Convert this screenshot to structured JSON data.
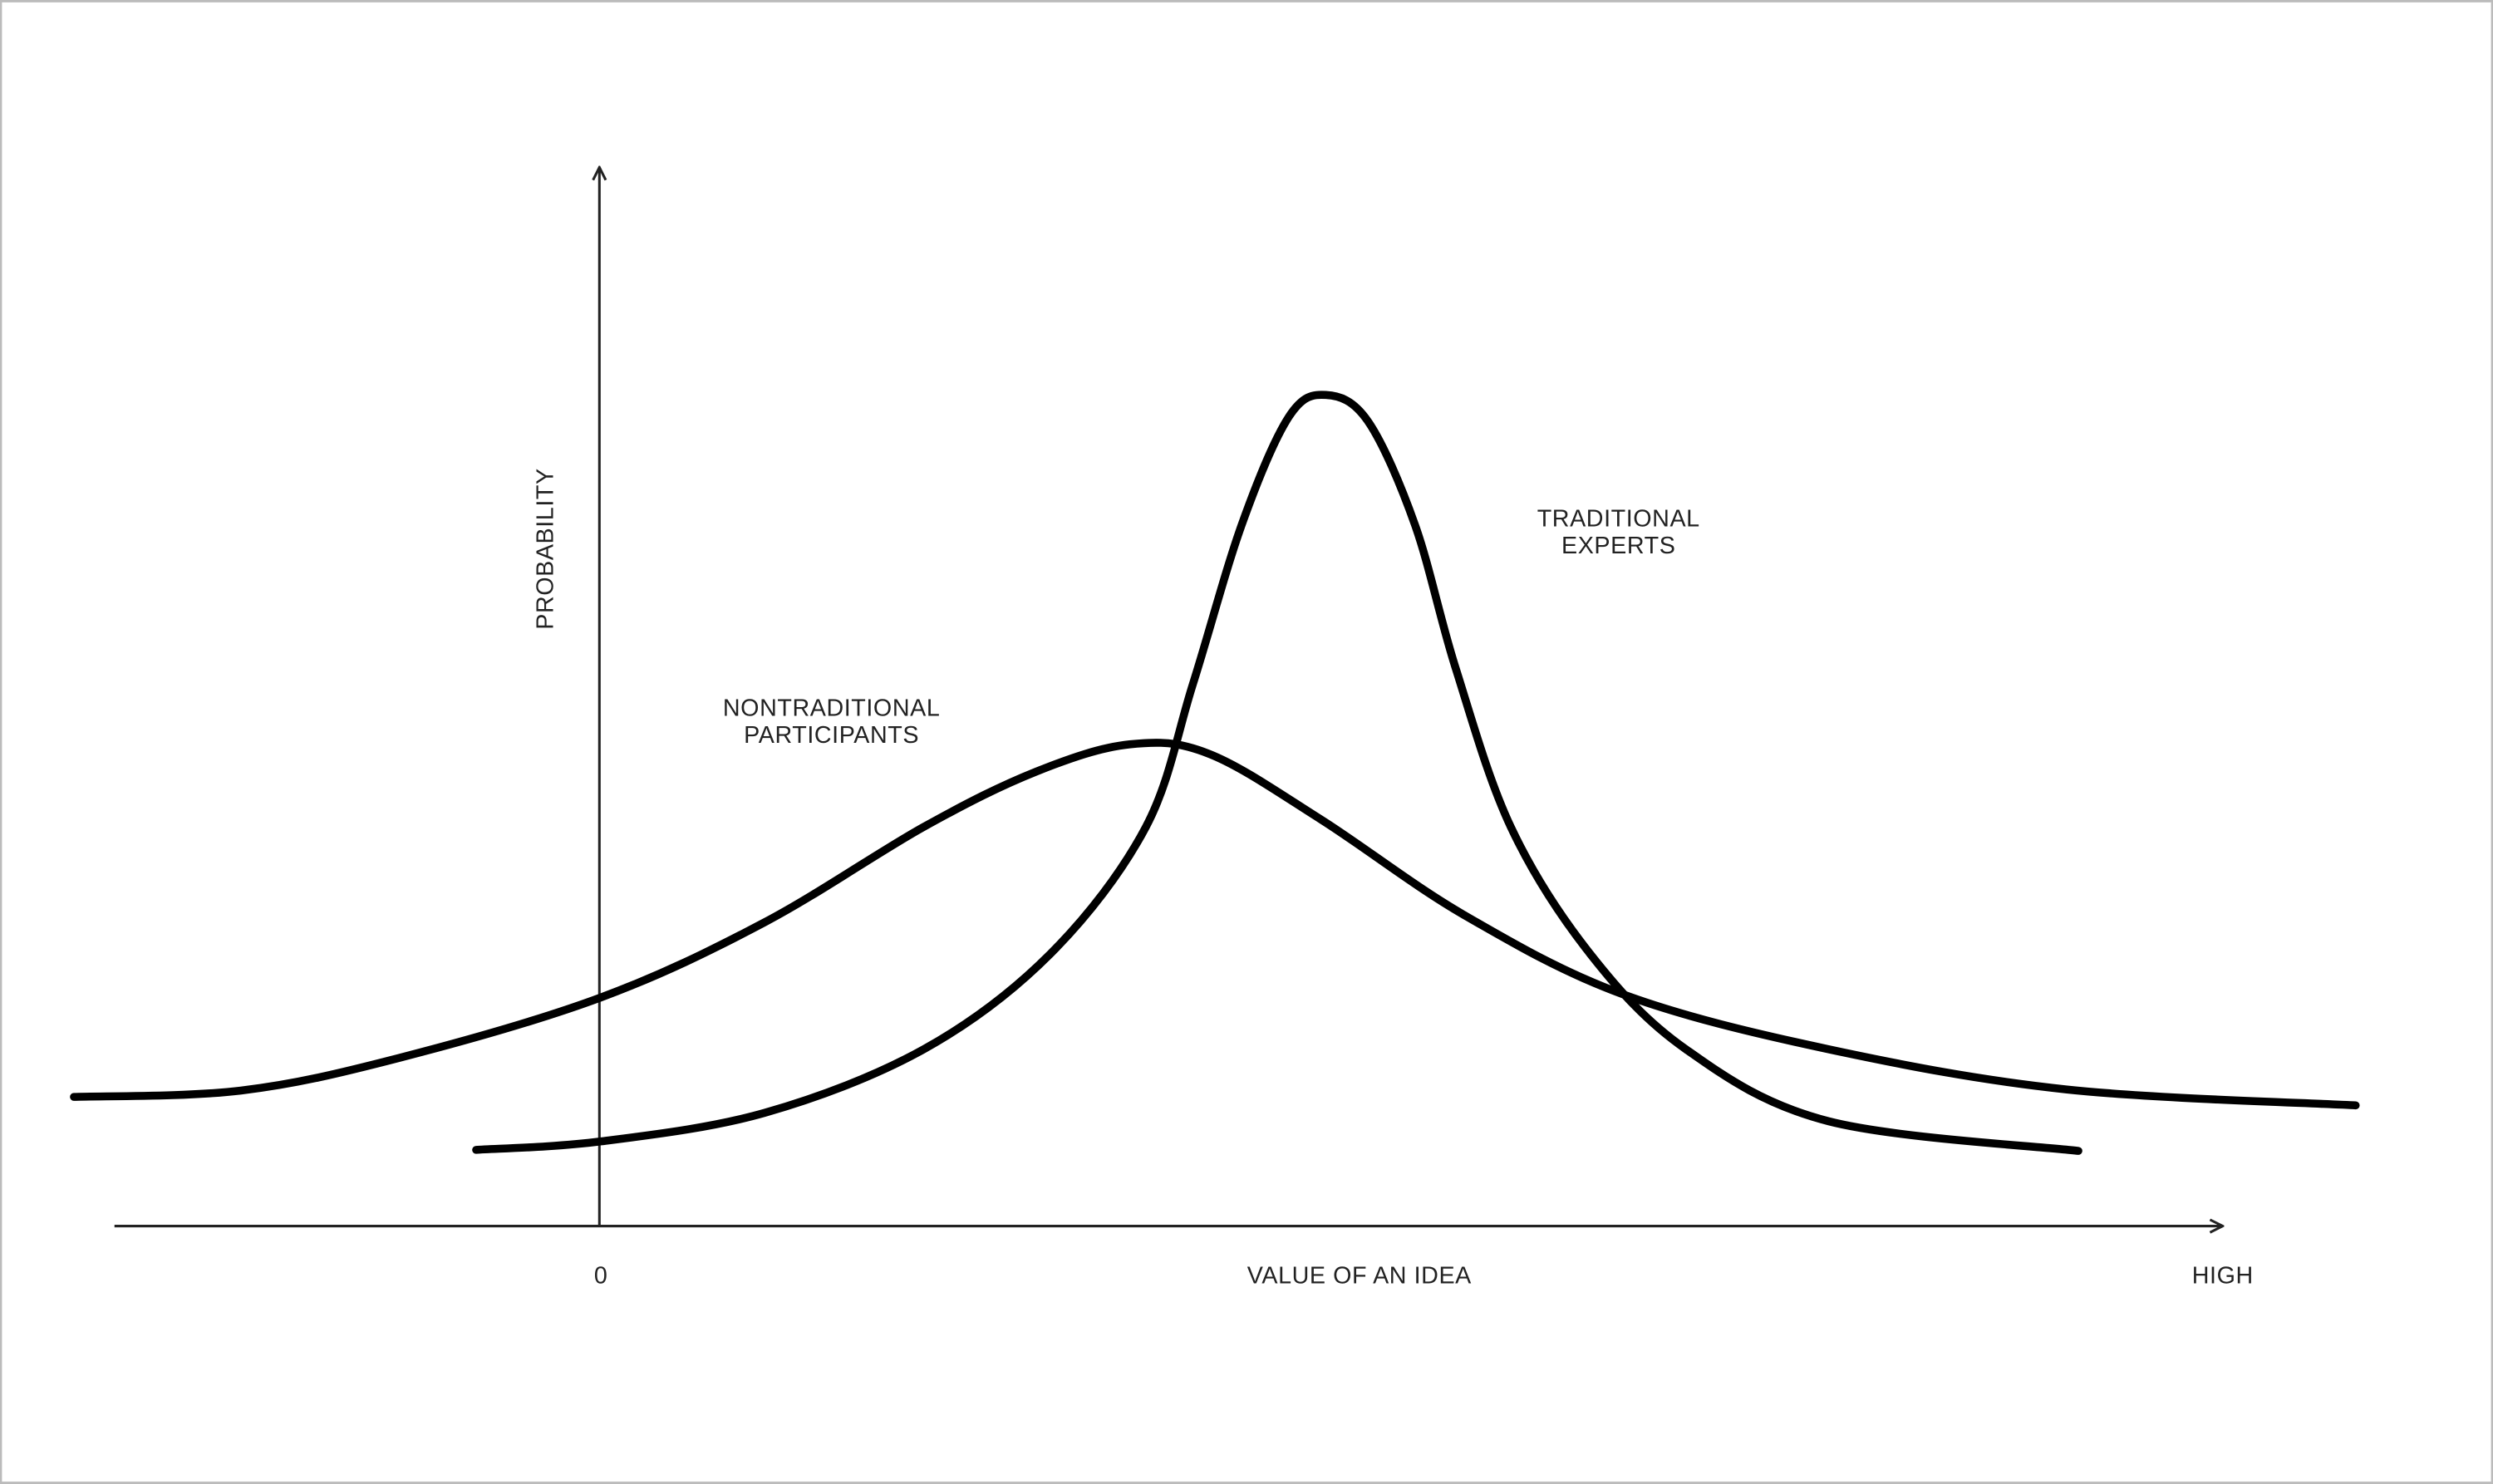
{
  "chart_data": {
    "type": "line",
    "x_label": "VALUE OF AN IDEA",
    "y_label": "PROBABILITY",
    "xlim": [
      -30,
      100
    ],
    "ylim": [
      0,
      100
    ],
    "xticks": [
      0,
      {
        "value": 100,
        "label": "HIGH"
      }
    ],
    "series": [
      {
        "label_lines": [
          "NONTRADITIONAL",
          "PARTICIPANTS"
        ],
        "color": "#000000",
        "x": [
          -32.5,
          -22.2,
          -12.4,
          0,
          10.1,
          19.9,
          26.8,
          32.6,
          37.5,
          44.4,
          53.2,
          63.0,
          75.7,
          90.4,
          108.2
        ],
        "values": [
          12.2,
          12.8,
          15.9,
          21.6,
          28.7,
          37.7,
          42.9,
          45.5,
          44.6,
          38.4,
          29.4,
          21.9,
          16.7,
          12.9,
          11.4
        ]
      },
      {
        "label_lines": [
          "TRADITIONAL",
          "EXPERTS"
        ],
        "color": "#000000",
        "x": [
          -7.7,
          0,
          10.1,
          19.9,
          27.7,
          33.6,
          36.5,
          39.5,
          42.4,
          44.7,
          47.3,
          50.2,
          52.7,
          56.1,
          61.0,
          66.9,
          75.7,
          91.1
        ],
        "values": [
          7.2,
          8.0,
          10.7,
          16.7,
          25.7,
          37.7,
          51.2,
          66.2,
          76.4,
          78.5,
          76.0,
          66.2,
          52.7,
          37.7,
          25.7,
          16.7,
          9.9,
          7.1
        ]
      }
    ]
  }
}
